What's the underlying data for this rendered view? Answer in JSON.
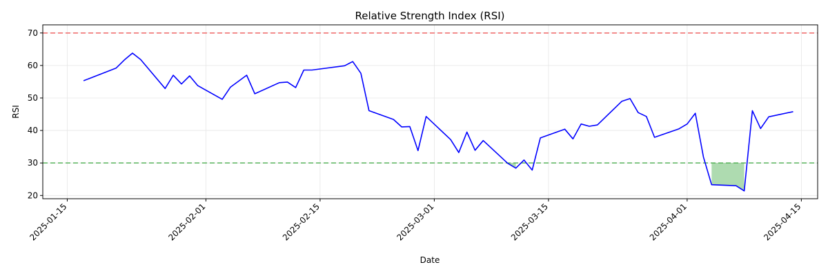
{
  "chart_data": {
    "type": "line",
    "title": "Relative Strength Index (RSI)",
    "xlabel": "Date",
    "ylabel": "RSI",
    "xlim": [
      "2025-01-12",
      "2025-04-17"
    ],
    "ylim": [
      19,
      72.5
    ],
    "grid": true,
    "x_ticks": [
      "2025-01-15",
      "2025-02-01",
      "2025-02-15",
      "2025-03-01",
      "2025-03-15",
      "2025-04-01",
      "2025-04-15"
    ],
    "y_ticks": [
      20,
      30,
      40,
      50,
      60,
      70
    ],
    "colors": {
      "line": "#0000ff",
      "overbought": "#ef5b5b",
      "oversold": "#4caf50",
      "fill": "#4caf50",
      "grid": "#e6e6e6"
    },
    "reference_lines": [
      {
        "value": 70,
        "color": "#ef5b5b",
        "style": "dashed"
      },
      {
        "value": 30,
        "color": "#4caf50",
        "style": "dashed"
      }
    ],
    "series": [
      {
        "x": [
          "2025-01-17",
          "2025-01-21",
          "2025-01-22",
          "2025-01-23",
          "2025-01-24",
          "2025-01-27",
          "2025-01-28",
          "2025-01-29",
          "2025-01-30",
          "2025-01-31",
          "2025-02-03",
          "2025-02-04",
          "2025-02-06",
          "2025-02-07",
          "2025-02-10",
          "2025-02-11",
          "2025-02-12",
          "2025-02-13",
          "2025-02-14",
          "2025-02-18",
          "2025-02-19",
          "2025-02-20",
          "2025-02-21",
          "2025-02-24",
          "2025-02-25",
          "2025-02-26",
          "2025-02-27",
          "2025-02-28",
          "2025-03-03",
          "2025-03-04",
          "2025-03-05",
          "2025-03-06",
          "2025-03-07",
          "2025-03-10",
          "2025-03-11",
          "2025-03-12",
          "2025-03-13",
          "2025-03-14",
          "2025-03-17",
          "2025-03-18",
          "2025-03-19",
          "2025-03-20",
          "2025-03-21",
          "2025-03-24",
          "2025-03-25",
          "2025-03-26",
          "2025-03-27",
          "2025-03-28",
          "2025-03-31",
          "2025-04-01",
          "2025-04-02",
          "2025-04-03",
          "2025-04-04",
          "2025-04-07",
          "2025-04-08",
          "2025-04-09",
          "2025-04-10",
          "2025-04-11",
          "2025-04-14"
        ],
        "values": [
          55.3,
          59.2,
          61.7,
          63.8,
          61.8,
          52.9,
          57.0,
          54.3,
          56.8,
          53.8,
          49.6,
          53.3,
          57.0,
          51.3,
          54.7,
          54.9,
          53.2,
          58.6,
          58.6,
          59.9,
          61.2,
          57.6,
          46.1,
          43.4,
          41.1,
          41.2,
          33.8,
          44.3,
          37.2,
          33.2,
          39.5,
          33.9,
          36.9,
          29.9,
          28.4,
          30.9,
          27.8,
          37.7,
          40.4,
          37.4,
          42.0,
          41.3,
          41.7,
          49.0,
          49.8,
          45.5,
          44.3,
          37.9,
          40.5,
          42.0,
          45.3,
          31.8,
          23.3,
          23.0,
          21.4,
          46.1,
          40.6,
          44.2,
          45.8
        ]
      }
    ]
  }
}
